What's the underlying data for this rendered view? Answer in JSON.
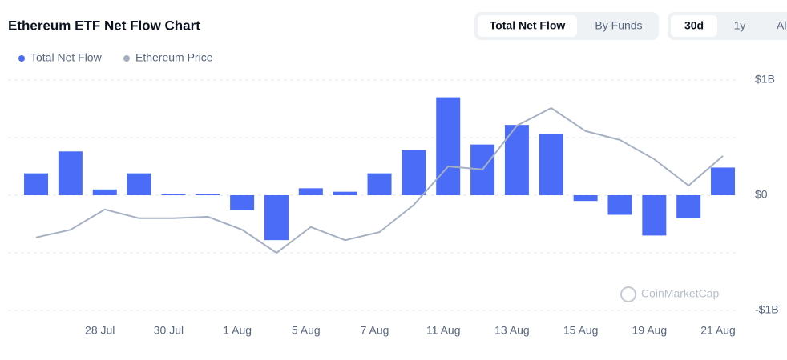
{
  "chart_data": {
    "type": "bar",
    "title": "Ethereum ETF Net Flow Chart",
    "tabs": [
      "Total Net Flow",
      "By Funds"
    ],
    "ranges": [
      "30d",
      "1y",
      "All"
    ],
    "watermark": "CoinMarketCap",
    "categories": [
      null,
      null,
      "28 Jul",
      null,
      "30 Jul",
      null,
      "1 Aug",
      null,
      "5 Aug",
      null,
      "7 Aug",
      null,
      "11 Aug",
      null,
      "13 Aug",
      null,
      "15 Aug",
      null,
      "19 Aug",
      null,
      "21 Aug"
    ],
    "series": [
      {
        "name": "Total Net Flow",
        "color": "#4a6cf7",
        "type": "bar",
        "values": [
          0.19,
          0.38,
          0.05,
          0.19,
          0.01,
          0.01,
          -0.13,
          -0.39,
          0.06,
          0.03,
          0.19,
          0.39,
          0.85,
          0.44,
          0.61,
          0.53,
          -0.05,
          -0.17,
          -0.35,
          -0.2,
          0.24
        ]
      },
      {
        "name": "Ethereum Price",
        "color": "#a6b0c3",
        "type": "line",
        "axis": "y2",
        "values": [
          2390,
          2410,
          2463,
          2440,
          2440,
          2444,
          2410,
          2350,
          2417,
          2383,
          2404,
          2475,
          2575,
          2567,
          2681,
          2727,
          2667,
          2644,
          2594,
          2525,
          2602
        ]
      }
    ],
    "ylim": [
      -1,
      1
    ],
    "yticks": [
      {
        "value": -1,
        "label": "-$1B"
      },
      {
        "value": 0,
        "label": "$0"
      },
      {
        "value": 1,
        "label": "$1B"
      }
    ],
    "gridlines": [
      -1,
      -0.5,
      0,
      0.5,
      1
    ],
    "y2lim": [
      2200,
      2800
    ],
    "grid": true,
    "legend": "top-left"
  }
}
